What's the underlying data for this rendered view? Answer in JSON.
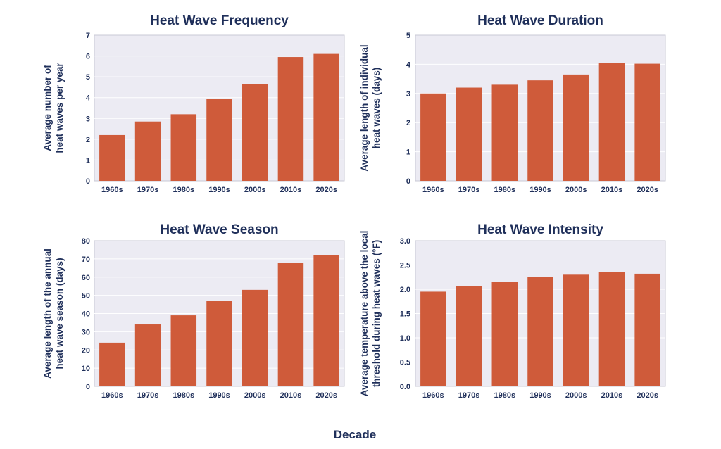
{
  "x_axis_label": "Decade",
  "colors": {
    "bar": "#cf5b3a",
    "text": "#1f2f5a",
    "plot_background": "#ecebf3"
  },
  "chart_data": [
    {
      "type": "bar",
      "title": "Heat Wave Frequency",
      "ylabel_lines": [
        "Average number of",
        "heat waves per year"
      ],
      "categories": [
        "1960s",
        "1970s",
        "1980s",
        "1990s",
        "2000s",
        "2010s",
        "2020s"
      ],
      "values": [
        2.2,
        2.85,
        3.2,
        3.95,
        4.65,
        5.95,
        6.1
      ],
      "ylim": [
        0,
        7
      ],
      "yticks": [
        "0",
        "1",
        "2",
        "3",
        "4",
        "5",
        "6",
        "7"
      ],
      "grid": true
    },
    {
      "type": "bar",
      "title": "Heat Wave Duration",
      "ylabel_lines": [
        "Average length of individual",
        "heat waves (days)"
      ],
      "categories": [
        "1960s",
        "1970s",
        "1980s",
        "1990s",
        "2000s",
        "2010s",
        "2020s"
      ],
      "values": [
        3.0,
        3.2,
        3.3,
        3.45,
        3.65,
        4.05,
        4.02
      ],
      "ylim": [
        0,
        5
      ],
      "yticks": [
        "0",
        "1",
        "2",
        "3",
        "4",
        "5"
      ],
      "grid": true
    },
    {
      "type": "bar",
      "title": "Heat Wave Season",
      "ylabel_lines": [
        "Average length of the annual",
        "heat wave season (days)"
      ],
      "categories": [
        "1960s",
        "1970s",
        "1980s",
        "1990s",
        "2000s",
        "2010s",
        "2020s"
      ],
      "values": [
        24,
        34,
        39,
        47,
        53,
        68,
        72
      ],
      "ylim": [
        0,
        80
      ],
      "yticks": [
        "0",
        "10",
        "20",
        "30",
        "40",
        "50",
        "60",
        "70",
        "80"
      ],
      "grid": true
    },
    {
      "type": "bar",
      "title": "Heat Wave Intensity",
      "ylabel_lines": [
        "Average temperature above the local",
        "threshold during heat waves (°F)"
      ],
      "categories": [
        "1960s",
        "1970s",
        "1980s",
        "1990s",
        "2000s",
        "2010s",
        "2020s"
      ],
      "values": [
        1.95,
        2.06,
        2.15,
        2.25,
        2.3,
        2.35,
        2.32
      ],
      "ylim": [
        0,
        3
      ],
      "yticks": [
        "0.0",
        "0.5",
        "1.0",
        "1.5",
        "2.0",
        "2.5",
        "3.0"
      ],
      "grid": true
    }
  ]
}
